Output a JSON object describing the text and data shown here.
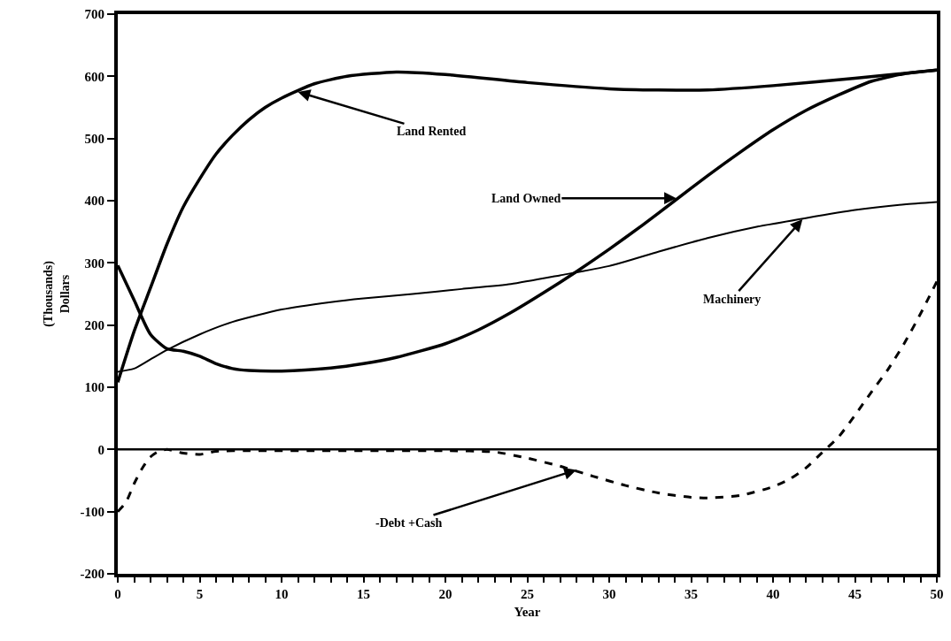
{
  "chart_data": {
    "type": "line",
    "xlabel": "Year",
    "ylabel": "(Thousands)\nDollars",
    "xlim": [
      0,
      50
    ],
    "ylim": [
      -200,
      700
    ],
    "xticks": [
      0,
      {
        "value": 1,
        "label": null
      },
      {
        "value": 2,
        "label": null
      },
      {
        "value": 3,
        "label": null
      },
      {
        "value": 4,
        "label": null
      },
      5,
      {
        "value": 6,
        "label": null
      },
      {
        "value": 7,
        "label": null
      },
      {
        "value": 8,
        "label": null
      },
      {
        "value": 9,
        "label": null
      },
      10,
      {
        "value": 11,
        "label": null
      },
      {
        "value": 12,
        "label": null
      },
      {
        "value": 13,
        "label": null
      },
      {
        "value": 14,
        "label": null
      },
      15,
      {
        "value": 16,
        "label": null
      },
      {
        "value": 17,
        "label": null
      },
      {
        "value": 18,
        "label": null
      },
      {
        "value": 19,
        "label": null
      },
      20,
      {
        "value": 21,
        "label": null
      },
      {
        "value": 22,
        "label": null
      },
      {
        "value": 23,
        "label": null
      },
      {
        "value": 24,
        "label": null
      },
      25,
      {
        "value": 26,
        "label": null
      },
      {
        "value": 27,
        "label": null
      },
      {
        "value": 28,
        "label": null
      },
      {
        "value": 29,
        "label": null
      },
      30,
      {
        "value": 31,
        "label": null
      },
      {
        "value": 32,
        "label": null
      },
      {
        "value": 33,
        "label": null
      },
      {
        "value": 34,
        "label": null
      },
      35,
      {
        "value": 36,
        "label": null
      },
      {
        "value": 37,
        "label": null
      },
      {
        "value": 38,
        "label": null
      },
      {
        "value": 39,
        "label": null
      },
      40,
      {
        "value": 41,
        "label": null
      },
      {
        "value": 42,
        "label": null
      },
      {
        "value": 43,
        "label": null
      },
      {
        "value": 44,
        "label": null
      },
      45,
      {
        "value": 46,
        "label": null
      },
      {
        "value": 47,
        "label": null
      },
      {
        "value": 48,
        "label": null
      },
      {
        "value": 49,
        "label": null
      },
      50
    ],
    "yticks": [
      -200,
      -100,
      0,
      100,
      200,
      300,
      400,
      500,
      600,
      700
    ],
    "series": [
      {
        "color": "#000000",
        "line_style": "solid",
        "x": [
          0,
          1,
          2,
          3,
          4,
          5,
          6,
          7,
          8,
          9,
          10,
          12,
          14,
          17,
          20,
          25,
          30,
          33,
          36,
          40,
          45,
          50
        ],
        "values": [
          108,
          190,
          260,
          330,
          390,
          435,
          475,
          505,
          530,
          550,
          565,
          588,
          600,
          607,
          603,
          590,
          580,
          578,
          578,
          585,
          597,
          610
        ]
      },
      {
        "color": "#000000",
        "line_style": "solid",
        "x": [
          0,
          1,
          2,
          3,
          4,
          5,
          6,
          7,
          8,
          10,
          13,
          15,
          17,
          20,
          22,
          24,
          26,
          28,
          30,
          32,
          34,
          36,
          38,
          40,
          42,
          44,
          46,
          48,
          50
        ],
        "values": [
          296,
          240,
          185,
          162,
          158,
          150,
          138,
          130,
          127,
          126,
          131,
          138,
          148,
          170,
          192,
          220,
          252,
          286,
          322,
          360,
          400,
          440,
          478,
          514,
          545,
          570,
          592,
          604,
          610
        ]
      },
      {
        "color": "#000000",
        "line_style": "solid",
        "x": [
          0,
          1,
          2,
          3,
          5,
          7,
          10,
          13,
          15,
          18,
          21,
          24,
          27,
          30,
          33,
          36,
          39,
          42,
          45,
          48,
          50
        ],
        "values": [
          125,
          130,
          145,
          160,
          185,
          205,
          225,
          237,
          243,
          250,
          258,
          266,
          280,
          295,
          318,
          340,
          358,
          372,
          385,
          394,
          398
        ]
      },
      {
        "color": "#000000",
        "line_style": "dashed",
        "x": [
          0,
          0.5,
          1,
          1.5,
          2,
          2.5,
          3,
          4,
          5,
          6,
          8,
          12,
          16,
          20,
          23,
          25,
          27,
          29,
          31,
          33,
          35,
          36,
          38,
          40,
          41,
          42,
          43,
          44,
          45,
          46,
          47,
          48,
          49,
          50
        ],
        "values": [
          -100,
          -85,
          -55,
          -30,
          -12,
          -3,
          0,
          -6,
          -8,
          -3,
          -2,
          -2,
          -2,
          -2,
          -4,
          -14,
          -27,
          -43,
          -58,
          -70,
          -77,
          -78,
          -74,
          -60,
          -48,
          -30,
          -5,
          20,
          55,
          92,
          128,
          170,
          218,
          270
        ]
      }
    ],
    "ref_lines": [
      {
        "axis": "y",
        "value": 0,
        "color": "#000000",
        "line_style": "solid"
      }
    ],
    "annotations": [
      {
        "text": "Land Rented",
        "x": 11,
        "y": 575
      },
      {
        "text": "Land Owned",
        "x": 34.1,
        "y": 404
      },
      {
        "text": "Machinery",
        "x": 41.8,
        "y": 370
      },
      {
        "text": "-Debt +Cash",
        "x": 28,
        "y": -33
      }
    ]
  }
}
